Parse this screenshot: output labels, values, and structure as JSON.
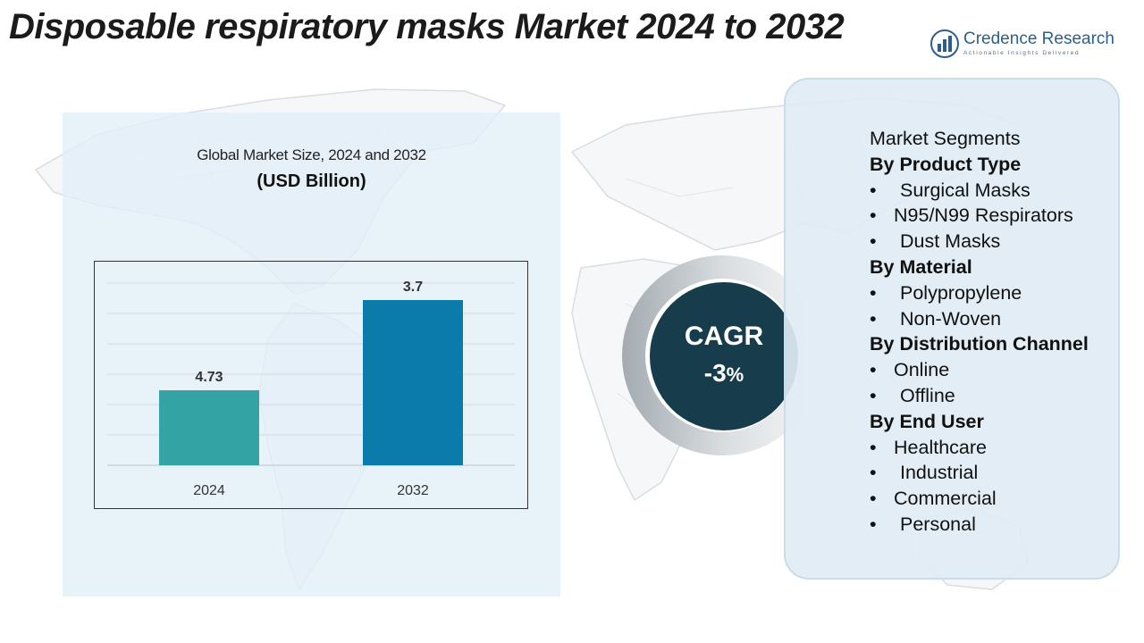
{
  "title": "Disposable respiratory masks Market 2024 to 2032",
  "brand": {
    "name": "Credence Research",
    "tagline": "Actionable Insights Delivered"
  },
  "chart_data": {
    "type": "bar",
    "title": "Global Market Size, 2024 and 2032",
    "unit": "(USD Billion)",
    "categories": [
      "2024",
      "2032"
    ],
    "values": [
      4.73,
      3.7
    ],
    "data_labels": [
      "4.73",
      "3.7"
    ],
    "bar_colors": [
      "#33a3a3",
      "#0a7bab"
    ],
    "grid": true,
    "legend": "none"
  },
  "cagr": {
    "label": "CAGR",
    "value": "-3",
    "unit": "%"
  },
  "segments": {
    "title": "Market Segments",
    "groups": [
      {
        "heading": "By Product Type",
        "items": [
          "Surgical Masks",
          "N95/N99 Respirators",
          "Dust Masks"
        ]
      },
      {
        "heading": "By Material",
        "items": [
          "Polypropylene",
          "Non-Woven"
        ]
      },
      {
        "heading": "By Distribution Channel",
        "items": [
          "Online",
          "Offline"
        ]
      },
      {
        "heading": "By End User",
        "items": [
          "Healthcare",
          "Industrial",
          "Commercial",
          "Personal"
        ]
      }
    ]
  },
  "colors": {
    "chart_panel": "#e2eef7",
    "segments_panel": "#e0ecf4",
    "cagr_circle": "#173c4b",
    "brand": "#2d5f8b"
  }
}
